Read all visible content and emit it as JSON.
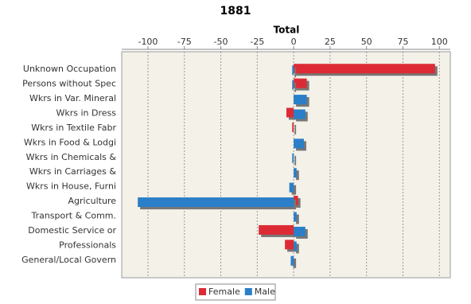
{
  "chart_data": {
    "type": "hbar",
    "title": "1881",
    "x_label": "Total",
    "categories": [
      "Unknown Occupation",
      "Persons without Spec",
      "Wkrs in Var. Mineral",
      "Wkrs in Dress",
      "Wkrs in Textile Fabr",
      "Wkrs in Food & Lodgi",
      "Wkrs in Chemicals & ",
      "Wkrs in Carriages & ",
      "Wkrs in House, Furni",
      "Agriculture",
      "Transport & Comm.",
      "Domestic Service or ",
      "Professionals",
      "General/Local Govern"
    ],
    "series": [
      {
        "name": "Female",
        "color": "#dd2b35",
        "values": [
          97,
          9,
          0,
          -5,
          -1,
          0,
          0,
          0,
          0,
          3,
          0,
          -24,
          -6,
          0
        ]
      },
      {
        "name": "Male",
        "color": "#2a7fc8",
        "values": [
          -1,
          -1,
          9,
          8,
          0,
          7,
          -1,
          2,
          -3,
          -107,
          2,
          8,
          2,
          -2
        ]
      }
    ],
    "xlim": [
      -118,
      107.5
    ],
    "xticks": [
      -100,
      -75,
      -50,
      -25,
      0,
      25,
      50,
      75,
      100
    ],
    "grid": true,
    "legend": "bottom"
  }
}
